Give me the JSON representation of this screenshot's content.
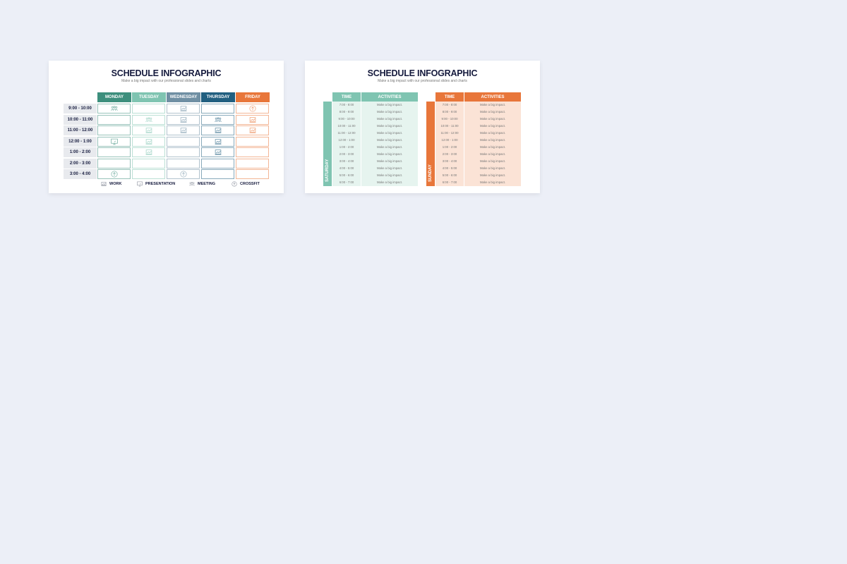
{
  "colors": {
    "monday": "#3d8f7d",
    "tuesday": "#7fc4b1",
    "wednesday": "#6f8fa3",
    "thursday": "#215f80",
    "friday": "#e8763a",
    "saturday": "#7fc4b1",
    "sunday": "#e8763a"
  },
  "slide1": {
    "title": "SCHEDULE INFOGRAPHIC",
    "subtitle": "Make a big impact with our professional slides and charts",
    "days": [
      "MONDAY",
      "TUESDAY",
      "WEDNESDAY",
      "THURSDAY",
      "FRIDAY"
    ],
    "times": [
      "9:00 - 10:00",
      "10:00 - 11:00",
      "11:00 - 12:00",
      "12:00 - 1:00",
      "1:00 - 2:00",
      "2:00 - 3:00",
      "3:00 - 4:00"
    ],
    "grid": [
      [
        "meeting",
        "",
        "work",
        "",
        "crossfit"
      ],
      [
        "",
        "meeting",
        "work",
        "meeting",
        "work"
      ],
      [
        "",
        "work",
        "work",
        "work",
        "work"
      ],
      [
        "presentation",
        "work",
        "",
        "work",
        ""
      ],
      [
        "",
        "work",
        "",
        "work",
        ""
      ],
      [
        "",
        "",
        "",
        "",
        ""
      ],
      [
        "crossfit",
        "",
        "crossfit",
        "",
        ""
      ]
    ],
    "legend": [
      {
        "icon": "work",
        "label": "WORK"
      },
      {
        "icon": "presentation",
        "label": "PRESENTATION"
      },
      {
        "icon": "meeting",
        "label": "MEETING"
      },
      {
        "icon": "crossfit",
        "label": "CROSSFIT"
      }
    ]
  },
  "slide2": {
    "title": "SCHEDULE INFOGRAPHIC",
    "subtitle": "Make a big impact with our professional slides and charts",
    "tables": [
      {
        "day": "SATURDAY",
        "time_header": "TIME",
        "activities_header": "ACTIVITIES",
        "rows": [
          [
            "7:00 - 8:00",
            "Make a big impact."
          ],
          [
            "8:00 - 9:00",
            "Make a big impact."
          ],
          [
            "9:00 - 10:00",
            "Make a big impact."
          ],
          [
            "10:00 - 11:00",
            "Make a big impact."
          ],
          [
            "11:00 - 12:00",
            "Make a big impact."
          ],
          [
            "12:00 - 1:00",
            "Make a big impact."
          ],
          [
            "1:00 - 2:00",
            "Make a big impact."
          ],
          [
            "2:00 - 3:00",
            "Make a big impact."
          ],
          [
            "3:00 - 4:00",
            "Make a big impact."
          ],
          [
            "4:00 - 5:00",
            "Make a big impact."
          ],
          [
            "5:00 - 6:00",
            "Make a big impact."
          ],
          [
            "6:00 - 7:00",
            "Make a big impact."
          ]
        ]
      },
      {
        "day": "SUNDAY",
        "time_header": "TIME",
        "activities_header": "ACTIVITIES",
        "rows": [
          [
            "7:00 - 8:00",
            "Make a big impact."
          ],
          [
            "8:00 - 9:00",
            "Make a big impact."
          ],
          [
            "9:00 - 10:00",
            "Make a big impact."
          ],
          [
            "10:00 - 11:00",
            "Make a big impact."
          ],
          [
            "11:00 - 12:00",
            "Make a big impact."
          ],
          [
            "12:00 - 1:00",
            "Make a big impact."
          ],
          [
            "1:00 - 2:00",
            "Make a big impact."
          ],
          [
            "2:00 - 3:00",
            "Make a big impact."
          ],
          [
            "3:00 - 4:00",
            "Make a big impact."
          ],
          [
            "4:00 - 5:00",
            "Make a big impact."
          ],
          [
            "5:00 - 6:00",
            "Make a big impact."
          ],
          [
            "6:00 - 7:00",
            "Make a big impact."
          ]
        ]
      }
    ]
  }
}
